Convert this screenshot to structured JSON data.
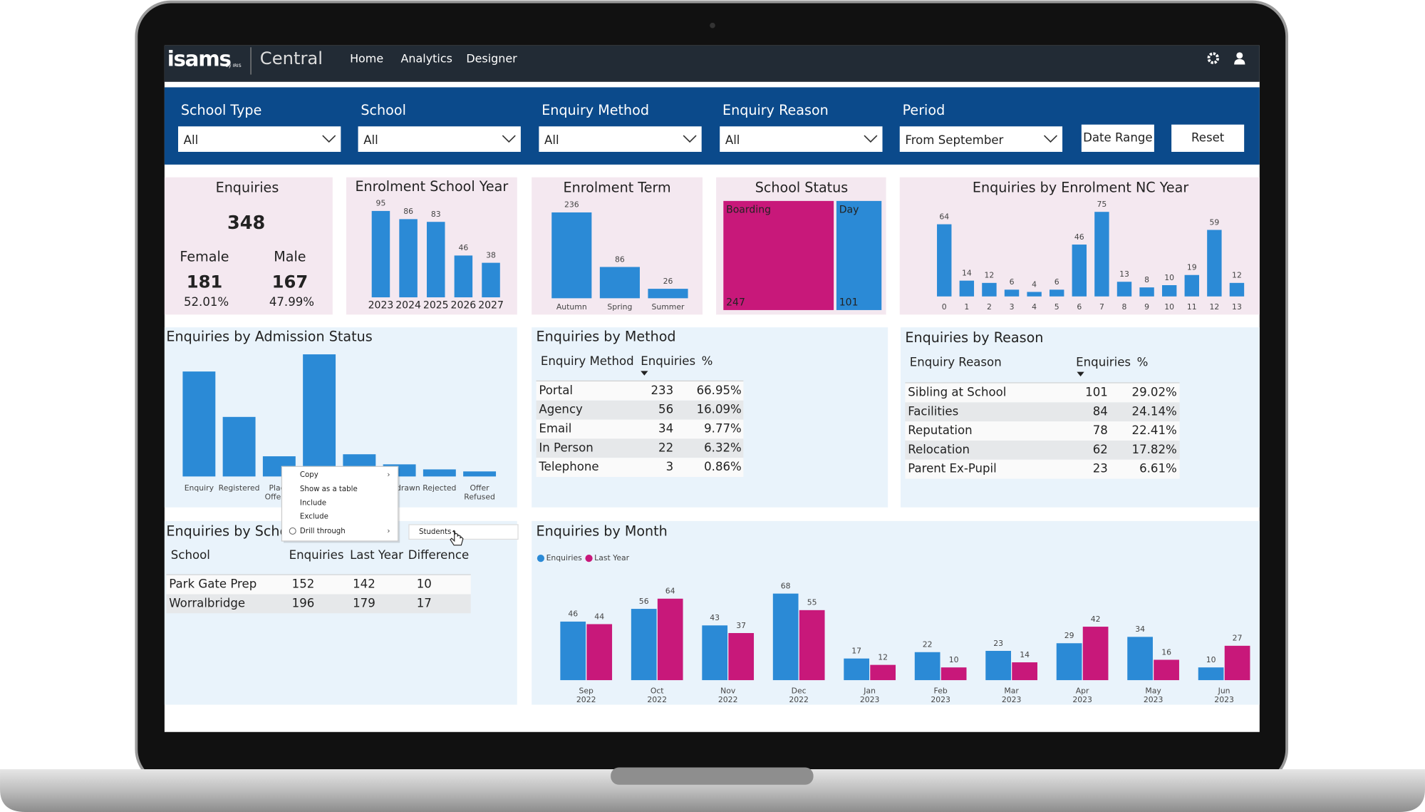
{
  "nav": {
    "logo": "isams",
    "logo_sub": "By IRIS",
    "product": "Central",
    "links": [
      "Home",
      "Analytics",
      "Designer"
    ]
  },
  "filters": [
    {
      "label": "School Type",
      "value": "All"
    },
    {
      "label": "School",
      "value": "All"
    },
    {
      "label": "Enquiry Method",
      "value": "All"
    },
    {
      "label": "Enquiry Reason",
      "value": "All"
    },
    {
      "label": "Period",
      "value": "From September"
    }
  ],
  "buttons": [
    "Date Range",
    "Reset"
  ],
  "enquiries_card": {
    "title": "Enquiries",
    "total": 348,
    "female_label": "Female",
    "male_label": "Male",
    "female": 181,
    "male": 167,
    "female_pct": "52.01%",
    "male_pct": "47.99%"
  },
  "school_year": {
    "type": "bar",
    "title": "Enrolment School Year",
    "categories": [
      "2023",
      "2024",
      "2025",
      "2026",
      "2027"
    ],
    "values": [
      95,
      86,
      83,
      46,
      38
    ],
    "color": "#2b8ad6"
  },
  "term": {
    "type": "bar",
    "title": "Enrolment Term",
    "categories": [
      "Autumn",
      "Spring",
      "Summer"
    ],
    "values": [
      236,
      86,
      26
    ],
    "color": "#2b8ad6"
  },
  "school_status": {
    "type": "treemap",
    "title": "School Status",
    "categories": [
      "Boarding",
      "Day"
    ],
    "values": [
      247,
      101
    ],
    "colors": [
      "#c8187a",
      "#2b8ad6"
    ]
  },
  "nc_year": {
    "type": "bar",
    "title": "Enquiries by Enrolment NC Year",
    "categories": [
      "0",
      "1",
      "2",
      "3",
      "4",
      "5",
      "6",
      "7",
      "8",
      "9",
      "10",
      "11",
      "12",
      "13"
    ],
    "values": [
      64,
      14,
      12,
      6,
      4,
      6,
      46,
      75,
      13,
      8,
      10,
      19,
      59,
      12
    ],
    "color": "#2b8ad6"
  },
  "admission": {
    "type": "bar",
    "title": "Enquiries by Admission Status",
    "categories": [
      "Enquiry",
      "Registered",
      "Place Offered",
      null,
      null,
      "Withdrawn",
      "Rejected",
      "Offer Refused"
    ],
    "values": [
      104,
      59,
      20,
      121,
      22,
      12,
      7,
      5
    ],
    "color": "#2b8ad6"
  },
  "method_table": {
    "title": "Enquiries by Method",
    "columns": [
      "Enquiry Method",
      "Enquiries",
      "%"
    ],
    "rows": [
      [
        "Portal",
        233,
        "66.95%"
      ],
      [
        "Agency",
        56,
        "16.09%"
      ],
      [
        "Email",
        34,
        "9.77%"
      ],
      [
        "In Person",
        22,
        "6.32%"
      ],
      [
        "Telephone",
        3,
        "0.86%"
      ]
    ]
  },
  "reason_table": {
    "title": "Enquiries by Reason",
    "columns": [
      "Enquiry Reason",
      "Enquiries",
      "%"
    ],
    "rows": [
      [
        "Sibling at School",
        101,
        "29.02%"
      ],
      [
        "Facilities",
        84,
        "24.14%"
      ],
      [
        "Reputation",
        78,
        "22.41%"
      ],
      [
        "Relocation",
        62,
        "17.82%"
      ],
      [
        "Parent Ex-Pupil",
        23,
        "6.61%"
      ]
    ]
  },
  "school_table": {
    "title": "Enquiries by School",
    "columns": [
      "School",
      "Enquiries",
      "Last Year",
      "Difference"
    ],
    "rows": [
      [
        "Park Gate Prep",
        152,
        142,
        10
      ],
      [
        "Worralbridge",
        196,
        179,
        17
      ]
    ]
  },
  "month": {
    "type": "bar",
    "title": "Enquiries by Month",
    "categories": [
      "Sep 2022",
      "Oct 2022",
      "Nov 2022",
      "Dec 2022",
      "Jan 2023",
      "Feb 2023",
      "Mar 2023",
      "Apr 2023",
      "May 2023",
      "Jun 2023"
    ],
    "series": [
      {
        "name": "Enquiries",
        "color": "#2b8ad6",
        "values": [
          46,
          56,
          43,
          68,
          17,
          22,
          23,
          29,
          34,
          10
        ]
      },
      {
        "name": "Last Year",
        "color": "#c8187a",
        "values": [
          44,
          64,
          37,
          55,
          12,
          10,
          14,
          42,
          16,
          27
        ]
      }
    ]
  },
  "context_menu": {
    "items": [
      "Copy",
      "Show as a table",
      "Include",
      "Exclude",
      "Drill through"
    ],
    "submenu": "Students"
  }
}
